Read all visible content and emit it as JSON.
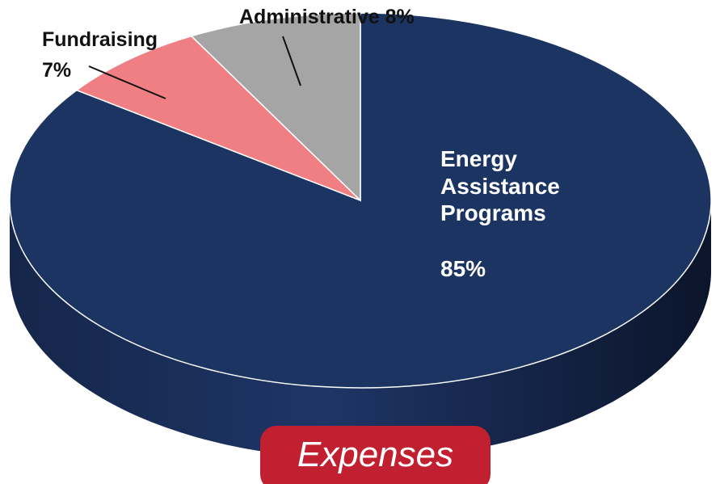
{
  "chart_data": {
    "type": "pie3d",
    "title": "Expenses",
    "categories": [
      "Energy Assistance Programs",
      "Fundraising",
      "Administrative"
    ],
    "values": [
      85,
      7,
      8
    ],
    "value_labels": [
      "85%",
      "7%",
      "8%"
    ],
    "colors": [
      "#1c3461",
      "#f07f84",
      "#a5a5a5"
    ]
  }
}
